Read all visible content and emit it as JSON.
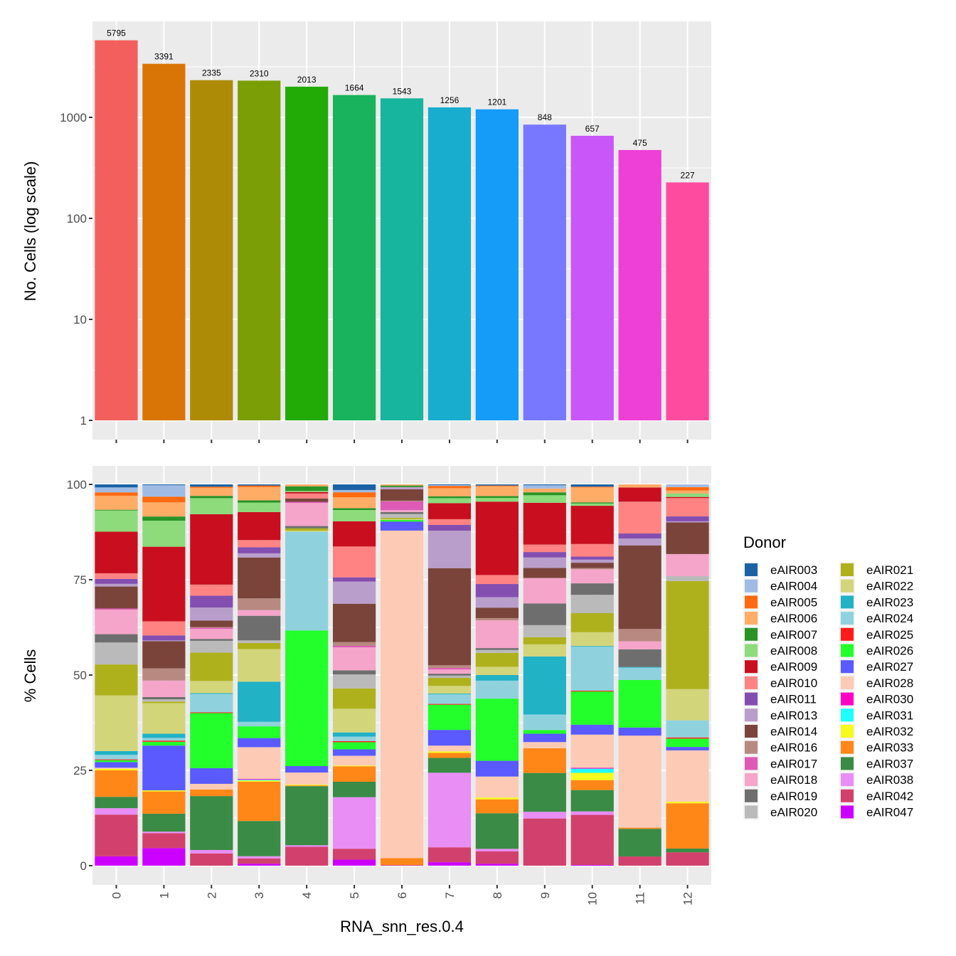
{
  "chart_data": [
    {
      "type": "bar",
      "panel": "top",
      "title": "",
      "xlabel": "",
      "ylabel": "No. Cells (log scale)",
      "yscale": "log10",
      "ylim": [
        1,
        8000
      ],
      "yticks": [
        1,
        10,
        100,
        1000
      ],
      "ytick_labels": [
        "1",
        "10",
        "100",
        "1000"
      ],
      "grid": true,
      "categories": [
        "0",
        "1",
        "2",
        "3",
        "4",
        "5",
        "6",
        "7",
        "8",
        "9",
        "10",
        "11",
        "12"
      ],
      "values": [
        5795,
        3391,
        2335,
        2310,
        2013,
        1664,
        1543,
        1256,
        1201,
        848,
        657,
        475,
        227
      ],
      "data_labels": [
        "5795",
        "3391",
        "2335",
        "2310",
        "2013",
        "1664",
        "1543",
        "1256",
        "1201",
        "848",
        "657",
        "475",
        "227"
      ],
      "colors": [
        "#F8766D",
        "#DE8C00",
        "#B79F00",
        "#7CAE00",
        "#00BA38",
        "#00C08B",
        "#00BFC4",
        "#00B4F0",
        "#619CFF",
        "#8F7FFF",
        "#C77CFF",
        "#F564E3",
        "#FF64B0"
      ],
      "bar_colors_rendered": [
        "#F35F5C",
        "#D97506",
        "#AD8B06",
        "#7B9E06",
        "#22AA06",
        "#18B35C",
        "#18B59E",
        "#18ADCF",
        "#159BF8",
        "#7878FF",
        "#C856F8",
        "#EE3FD6",
        "#FF4B9F"
      ]
    },
    {
      "type": "bar",
      "stacked": true,
      "panel": "bottom",
      "title": "",
      "xlabel": "RNA_snn_res.0.4",
      "ylabel": "% Cells",
      "ylim": [
        0,
        100
      ],
      "yticks": [
        0,
        25,
        50,
        75,
        100
      ],
      "ytick_labels": [
        "0",
        "25",
        "50",
        "75",
        "100"
      ],
      "grid": true,
      "categories": [
        "0",
        "1",
        "2",
        "3",
        "4",
        "5",
        "6",
        "7",
        "8",
        "9",
        "10",
        "11",
        "12"
      ],
      "x_tick_rotation": "vertical",
      "legend": {
        "title": "Donor",
        "position": "right",
        "columns": 2
      },
      "series": [
        {
          "name": "eAIR003",
          "color": "#1B62A5",
          "values": [
            0.8,
            0.2,
            0.6,
            0.3,
            0,
            1.5,
            0,
            0.2,
            0.3,
            0.2,
            0.6,
            0,
            0
          ]
        },
        {
          "name": "eAIR004",
          "color": "#A0BBE3",
          "values": [
            1.3,
            3.0,
            0,
            0,
            0,
            0.6,
            0,
            0.2,
            0,
            0.8,
            0,
            0,
            0.7
          ]
        },
        {
          "name": "eAIR005",
          "color": "#FF6A10",
          "values": [
            0.9,
            1.5,
            0.3,
            0.4,
            0,
            1.3,
            0,
            0.6,
            0.2,
            0,
            0.2,
            0,
            0.9
          ]
        },
        {
          "name": "eAIR006",
          "color": "#FFAC67",
          "values": [
            3.7,
            3.7,
            2.1,
            3.5,
            0.5,
            2.9,
            0.3,
            2.1,
            2.6,
            0.9,
            3.9,
            0.8,
            0.8
          ]
        },
        {
          "name": "eAIR007",
          "color": "#2A9326",
          "values": [
            0.2,
            1.1,
            0.6,
            0.6,
            1.2,
            0.5,
            0.4,
            0.5,
            0.5,
            0.7,
            0.3,
            0,
            0
          ]
        },
        {
          "name": "eAIR008",
          "color": "#8DDB7A",
          "values": [
            5.6,
            6.8,
            4.2,
            2.5,
            0.3,
            3.0,
            0,
            1.3,
            1.0,
            1.8,
            0.6,
            0,
            0.9
          ]
        },
        {
          "name": "eAIR009",
          "color": "#C90F1F",
          "values": [
            11,
            19.5,
            18.4,
            7.4,
            0.4,
            6.7,
            0,
            4.2,
            19.6,
            10,
            10,
            3.7,
            0.3
          ]
        },
        {
          "name": "eAIR010",
          "color": "#FF8383",
          "values": [
            1.5,
            3.7,
            2.9,
            1.9,
            1.3,
            8.2,
            0,
            1.5,
            2.4,
            1.8,
            3.3,
            8.3,
            4.8
          ]
        },
        {
          "name": "eAIR011",
          "color": "#844EB0",
          "values": [
            1.3,
            1.3,
            3.1,
            1.6,
            0,
            1.1,
            0,
            1.5,
            3.5,
            1.3,
            0.8,
            1.3,
            1.3
          ]
        },
        {
          "name": "eAIR013",
          "color": "#B99ECB",
          "values": [
            0.7,
            0.2,
            3.4,
            1.1,
            0,
            5.9,
            0.6,
            9.8,
            2.8,
            2.5,
            0.8,
            1.8,
            0.3
          ]
        },
        {
          "name": "eAIR014",
          "color": "#7A443B",
          "values": [
            5.8,
            7.1,
            1.7,
            10.8,
            0.9,
            10.2,
            3.0,
            25.4,
            2.8,
            2.4,
            1.4,
            21.8,
            8.3
          ]
        },
        {
          "name": "eAIR016",
          "color": "#B78981",
          "values": [
            0,
            3.2,
            0.2,
            3.1,
            0,
            1.0,
            0.2,
            0.7,
            0.6,
            0,
            0.3,
            3.2,
            0
          ]
        },
        {
          "name": "eAIR017",
          "color": "#DD5AB5",
          "values": [
            0.3,
            0,
            0.3,
            0,
            0.3,
            0.4,
            2.3,
            0.4,
            0,
            0,
            0,
            0,
            0
          ]
        },
        {
          "name": "eAIR018",
          "color": "#F4A5C9",
          "values": [
            6.5,
            4.3,
            2.6,
            1.5,
            6.1,
            6.1,
            0.5,
            1.1,
            7.4,
            6.1,
            3.7,
            2.1,
            5.8
          ]
        },
        {
          "name": "eAIR019",
          "color": "#6E6E6E",
          "values": [
            2.2,
            0.6,
            0.5,
            6.5,
            0.6,
            1.1,
            0.5,
            0.5,
            0.5,
            5.2,
            3.0,
            4.6,
            0
          ]
        },
        {
          "name": "eAIR020",
          "color": "#BABABA",
          "values": [
            5.8,
            0.6,
            3.1,
            0.7,
            0,
            3.7,
            1.0,
            0.6,
            0.8,
            2.9,
            4.8,
            0,
            1.3
          ]
        },
        {
          "name": "eAIR021",
          "color": "#AFB11C",
          "values": [
            8.2,
            0.4,
            7.4,
            1.6,
            0.6,
            5.4,
            0.3,
            2.1,
            3.7,
            1.7,
            5.0,
            0,
            28.4
          ]
        },
        {
          "name": "eAIR022",
          "color": "#D3D57B",
          "values": [
            14.7,
            8.0,
            3.2,
            8.6,
            0.3,
            6.3,
            0.3,
            2.0,
            2.2,
            2.9,
            3.6,
            0,
            8.2
          ]
        },
        {
          "name": "eAIR023",
          "color": "#21B2C6",
          "values": [
            1.0,
            1.1,
            0.2,
            10.6,
            0,
            1.1,
            0,
            0.2,
            1.5,
            13.9,
            0.2,
            0.2,
            0
          ]
        },
        {
          "name": "eAIR024",
          "color": "#8FD2DE",
          "values": [
            1.2,
            0.7,
            4.8,
            1.2,
            26.1,
            1.2,
            0,
            2.5,
            4.8,
            3.7,
            11.5,
            3.2,
            4.5
          ]
        },
        {
          "name": "eAIR025",
          "color": "#FF1A1A",
          "values": [
            0.2,
            0.3,
            0.2,
            0,
            0,
            0.3,
            0,
            0.2,
            0,
            0,
            0.2,
            0,
            0.3
          ]
        },
        {
          "name": "eAIR026",
          "color": "#22FF2A",
          "values": [
            0.5,
            1.0,
            14.4,
            3.1,
            35.8,
            1.9,
            0.4,
            6.6,
            16.6,
            0.9,
            8.7,
            12.4,
            2.2
          ]
        },
        {
          "name": "eAIR027",
          "color": "#5A5AFF",
          "values": [
            1.5,
            11.7,
            4.1,
            2.4,
            1.7,
            1.7,
            2.4,
            4.1,
            4.2,
            2.0,
            2.6,
            2.1,
            0.9
          ]
        },
        {
          "name": "eAIR028",
          "color": "#FCCAB5",
          "values": [
            0.3,
            0,
            1.5,
            8.4,
            3.2,
            2.6,
            86.5,
            1.5,
            5.6,
            1.5,
            8.7,
            24.0,
            13.5
          ]
        },
        {
          "name": "eAIR030",
          "color": "#FF00C4",
          "values": [
            0,
            0,
            0,
            0.2,
            0,
            0,
            0,
            0,
            0,
            0,
            0.2,
            0,
            0
          ]
        },
        {
          "name": "eAIR031",
          "color": "#1FFEFF",
          "values": [
            0,
            0,
            0,
            0.2,
            0,
            0,
            0,
            0,
            0,
            0,
            1.1,
            0,
            0
          ]
        },
        {
          "name": "eAIR032",
          "color": "#F5FB1D",
          "values": [
            0.4,
            0.3,
            0,
            0.3,
            0.2,
            0.2,
            0,
            0.4,
            0.5,
            0,
            1.9,
            0,
            0.4
          ]
        },
        {
          "name": "eAIR033",
          "color": "#FF8717",
          "values": [
            7.0,
            5.8,
            1.7,
            10.4,
            0.2,
            4.1,
            1.8,
            1.3,
            3.7,
            5.9,
            2.6,
            0.3,
            11.9
          ]
        },
        {
          "name": "eAIR037",
          "color": "#3A8B45",
          "values": [
            3.0,
            4.7,
            14.1,
            9.3,
            15.6,
            4.1,
            0,
            3.9,
            9.5,
            9.3,
            5.6,
            7.2,
            1.0
          ]
        },
        {
          "name": "eAIR038",
          "color": "#E88EF5",
          "values": [
            1.7,
            0.4,
            0.9,
            0.6,
            0.4,
            13.7,
            0,
            19.5,
            0.7,
            1.6,
            0.9,
            0,
            0
          ]
        },
        {
          "name": "eAIR042",
          "color": "#D2416D",
          "values": [
            11,
            3.9,
            3.2,
            1.4,
            5.0,
            2.9,
            0.2,
            3.9,
            3.3,
            11.3,
            13.1,
            2.4,
            3.5
          ]
        },
        {
          "name": "eAIR047",
          "color": "#CB00FF",
          "values": [
            2.5,
            4.6,
            0,
            0.5,
            0,
            1.6,
            0,
            0.9,
            0.5,
            0,
            0.2,
            0,
            0
          ]
        }
      ]
    }
  ],
  "legend_title": "Donor",
  "xlabel": "RNA_snn_res.0.4",
  "top_ylabel": "No. Cells (log scale)",
  "bottom_ylabel": "% Cells"
}
